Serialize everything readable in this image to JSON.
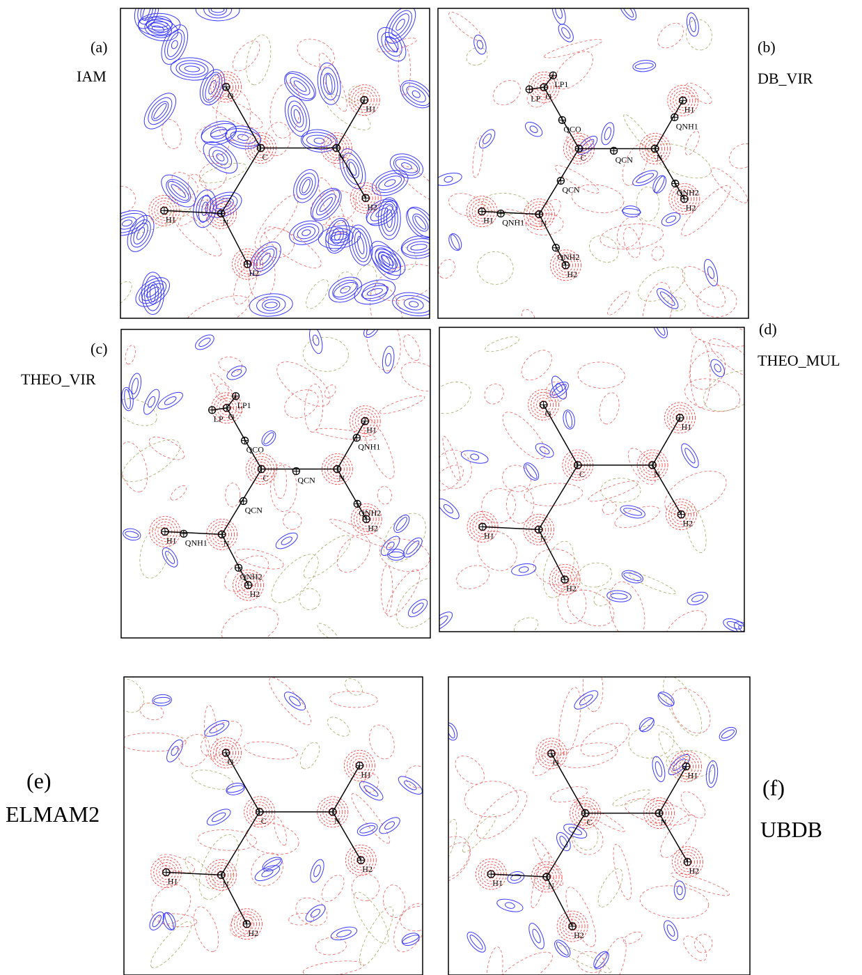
{
  "panels": [
    {
      "tag": "(a)",
      "method": "IAM",
      "atoms": [
        "O",
        "C",
        "N",
        "H1",
        "H2",
        "N",
        "H1",
        "H2"
      ]
    },
    {
      "tag": "(b)",
      "method": "DB_VIR",
      "atoms": [
        "LP1",
        "LP",
        "O",
        "QCO",
        "C",
        "QCN",
        "N",
        "QNH1",
        "H1",
        "QNH2",
        "H2",
        "QCN",
        "N",
        "QNH1",
        "H1",
        "QNH2",
        "H2"
      ]
    },
    {
      "tag": "(c)",
      "method": "THEO_VIR",
      "atoms": [
        "LP1",
        "LP",
        "O",
        "QCO",
        "C",
        "QCN",
        "N",
        "QNH1",
        "H1",
        "QNH2",
        "H2",
        "QCN",
        "N",
        "QNH1",
        "H1",
        "QNH2",
        "H2"
      ]
    },
    {
      "tag": "(d)",
      "method": "THEO_MUL",
      "atoms": [
        "O",
        "C",
        "N",
        "H1",
        "H2",
        "N",
        "H1",
        "H2"
      ]
    },
    {
      "tag": "(e)",
      "method": "ELMAM2",
      "atoms": [
        "O",
        "C",
        "N",
        "H1",
        "H2",
        "N",
        "H1",
        "H2"
      ]
    },
    {
      "tag": "(f)",
      "method": "UBDB",
      "atoms": [
        "O",
        "C",
        "N",
        "H1",
        "H2",
        "N",
        "H1",
        "H2"
      ]
    }
  ]
}
